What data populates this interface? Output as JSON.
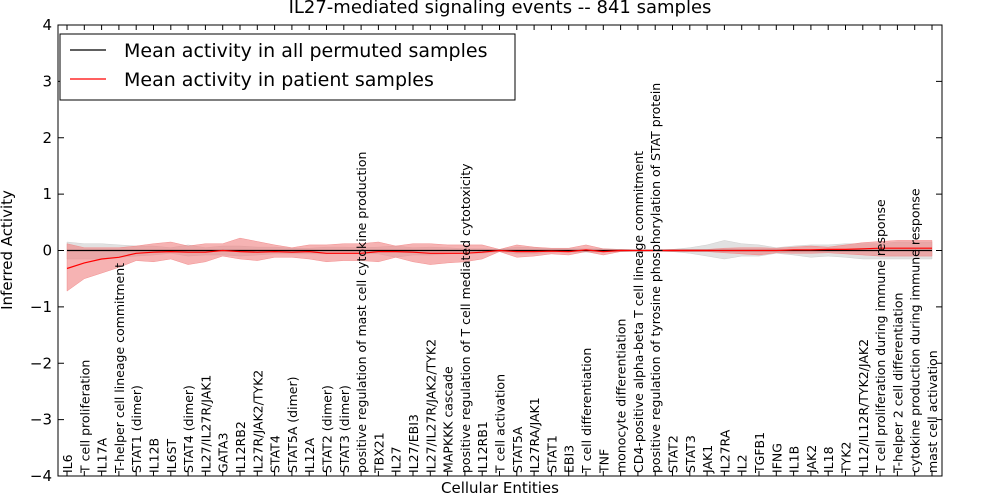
{
  "chart_data": {
    "type": "line",
    "title": "IL27-mediated signaling events -- 841 samples",
    "xlabel": "Cellular Entities",
    "ylabel": "Inferred Activity",
    "ylim": [
      -4,
      4
    ],
    "yticks": [
      "−4",
      "−3",
      "−2",
      "−1",
      "0",
      "1",
      "2",
      "3",
      "4"
    ],
    "legend_position": "top-left",
    "categories": [
      "IL6",
      "T cell proliferation",
      "IL17A",
      "T-helper cell lineage commitment",
      "STAT1 (dimer)",
      "IL12B",
      "IL6ST",
      "STAT4 (dimer)",
      "IL27/IL27R/JAK1",
      "GATA3",
      "IL12RB2",
      "IL27R/JAK2/TYK2",
      "STAT4",
      "STAT5A (dimer)",
      "IL12A",
      "STAT2 (dimer)",
      "STAT3 (dimer)",
      "positive regulation of mast cell cytokine production",
      "TBX21",
      "IL27",
      "IL27/EBI3",
      "IL27/IL27R/JAK2/TYK2",
      "MAPKKK cascade",
      "positive regulation of T cell mediated cytotoxicity",
      "IL12RB1",
      "T cell activation",
      "STAT5A",
      "IL27RA/JAK1",
      "STAT1",
      "EBI3",
      "T cell differentiation",
      "TNF",
      "monocyte differentiation",
      "CD4-positive alpha-beta T cell lineage commitment",
      "positive regulation of tyrosine phosphorylation of STAT protein",
      "STAT2",
      "STAT3",
      "JAK1",
      "IL27RA",
      "IL2",
      "TGFB1",
      "IFNG",
      "IL1B",
      "JAK2",
      "IL18",
      "TYK2",
      "IL12/IL12R/TYK2/JAK2",
      "T cell proliferation during immune response",
      "T-helper 2 cell differentiation",
      "cytokine production during immune response",
      "mast cell activation"
    ],
    "series": [
      {
        "name": "Mean activity in all permuted samples",
        "color": "#000000",
        "values": [
          0,
          0,
          0,
          0,
          0,
          0,
          0,
          0,
          0,
          0,
          0,
          0,
          0,
          0,
          0,
          0,
          0,
          0,
          0,
          0,
          0,
          0,
          0,
          0,
          0,
          0,
          0,
          0,
          0,
          0,
          0,
          0,
          0,
          0,
          0,
          0,
          0,
          0,
          0,
          0,
          0,
          0,
          0,
          0,
          0,
          0,
          0,
          0,
          0,
          0,
          0
        ],
        "band_low": [
          -0.15,
          -0.15,
          -0.15,
          -0.12,
          -0.1,
          -0.08,
          -0.05,
          -0.1,
          -0.08,
          -0.08,
          -0.1,
          -0.08,
          -0.06,
          -0.06,
          -0.06,
          -0.06,
          -0.05,
          -0.05,
          -0.06,
          -0.12,
          -0.08,
          -0.08,
          -0.06,
          -0.05,
          -0.05,
          -0.02,
          -0.06,
          -0.06,
          -0.03,
          -0.03,
          -0.03,
          -0.03,
          -0.02,
          -0.01,
          -0.01,
          -0.02,
          -0.05,
          -0.1,
          -0.15,
          -0.1,
          -0.1,
          -0.05,
          -0.08,
          -0.12,
          -0.1,
          -0.12,
          -0.15,
          -0.15,
          -0.15,
          -0.15,
          -0.15
        ],
        "band_high": [
          0.15,
          0.12,
          0.12,
          0.1,
          0.08,
          0.08,
          0.05,
          0.1,
          0.05,
          0.08,
          0.08,
          0.06,
          0.06,
          0.04,
          0.04,
          0.06,
          0.06,
          0.05,
          0.06,
          0.08,
          0.05,
          0.06,
          0.05,
          0.03,
          0.03,
          0.02,
          0.06,
          0.05,
          0.03,
          0.03,
          0.03,
          0.03,
          0.02,
          0.01,
          0.01,
          0.02,
          0.05,
          0.1,
          0.18,
          0.12,
          0.1,
          0.05,
          0.08,
          0.1,
          0.1,
          0.12,
          0.12,
          0.12,
          0.15,
          0.15,
          0.15
        ],
        "band_color": "#c8c8c8"
      },
      {
        "name": "Mean activity in patient samples",
        "color": "#ff0000",
        "values": [
          -0.32,
          -0.22,
          -0.15,
          -0.12,
          -0.05,
          -0.03,
          -0.02,
          -0.03,
          -0.03,
          0,
          -0.02,
          -0.03,
          -0.02,
          -0.03,
          -0.02,
          -0.05,
          -0.05,
          -0.05,
          -0.02,
          -0.02,
          -0.03,
          -0.05,
          -0.05,
          -0.05,
          -0.03,
          0,
          -0.02,
          -0.02,
          -0.01,
          -0.02,
          0.01,
          -0.02,
          0,
          0,
          0,
          0,
          0,
          0,
          0,
          0,
          0,
          0,
          0.01,
          0.01,
          0.02,
          0.02,
          0.03,
          0.04,
          0.04,
          0.04,
          0.04
        ],
        "band_low": [
          -0.72,
          -0.5,
          -0.4,
          -0.3,
          -0.18,
          -0.2,
          -0.15,
          -0.25,
          -0.2,
          -0.1,
          -0.15,
          -0.18,
          -0.12,
          -0.12,
          -0.15,
          -0.2,
          -0.18,
          -0.18,
          -0.2,
          -0.12,
          -0.2,
          -0.25,
          -0.22,
          -0.2,
          -0.15,
          -0.02,
          -0.12,
          -0.1,
          -0.06,
          -0.08,
          -0.02,
          -0.08,
          -0.02,
          -0.01,
          -0.01,
          -0.02,
          -0.02,
          -0.02,
          -0.04,
          -0.06,
          -0.08,
          -0.04,
          -0.05,
          -0.05,
          -0.04,
          -0.06,
          -0.08,
          -0.1,
          -0.1,
          -0.1,
          -0.1
        ],
        "band_high": [
          0.12,
          0.05,
          0.05,
          0.05,
          0.08,
          0.12,
          0.15,
          0.08,
          0.12,
          0.12,
          0.22,
          0.16,
          0.1,
          0.05,
          0.1,
          0.1,
          0.12,
          0.12,
          0.15,
          0.08,
          0.12,
          0.12,
          0.1,
          0.1,
          0.1,
          0.02,
          0.1,
          0.06,
          0.04,
          0.04,
          0.1,
          0.03,
          0.02,
          0.01,
          0.01,
          0.02,
          0.02,
          0.02,
          0.04,
          0.05,
          0.05,
          0.04,
          0.06,
          0.08,
          0.06,
          0.1,
          0.14,
          0.16,
          0.18,
          0.18,
          0.18
        ],
        "band_color": "#f08080"
      }
    ]
  }
}
